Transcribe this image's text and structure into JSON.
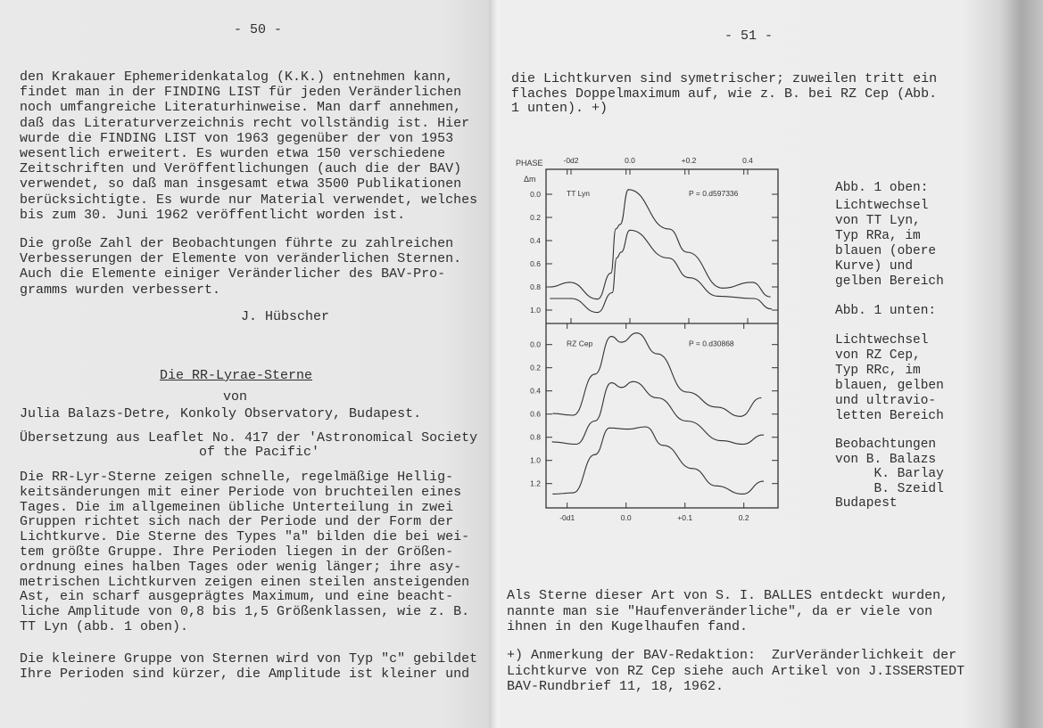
{
  "left_page": {
    "page_number": "- 50 -",
    "paragraph1": [
      "den Krakauer Ephemeridenkatalog (K.K.) entnehmen kann,",
      "findet man in der FINDING LIST für jeden Veränderlichen",
      "noch umfangreiche Literaturhinweise. Man darf annehmen,",
      "daß das Literaturverzeichnis recht vollständig ist. Hier",
      "wurde die FINDING LIST von 1963 gegenüber der von 1953",
      "wesentlich erweitert. Es wurden etwa 150 verschiedene",
      "Zeitschriften und Veröffentlichungen (auch die der BAV)",
      "verwendet, so daß man insgesamt etwa 3500 Publikationen",
      "berücksichtigte. Es wurde nur Material verwendet, welches",
      "bis zum 30. Juni 1962 veröffentlicht worden ist."
    ],
    "paragraph2": [
      "Die große Zahl der Beobachtungen führte zu zahlreichen",
      "Verbesserungen der Elemente von veränderlichen Sternen.",
      "Auch die Elemente einiger Veränderlicher des BAV-Pro-",
      "gramms wurden verbessert."
    ],
    "signature": "J. Hübscher",
    "article_title": "Die RR-Lyrae-Sterne",
    "by": "von",
    "author": "Julia Balazs-Detre, Konkoly Observatory, Budapest.",
    "translation_note": [
      "Übersetzung aus Leaflet No. 417 der 'Astronomical Society",
      "of the Pacific'"
    ],
    "paragraph3": [
      "Die RR-Lyr-Sterne zeigen schnelle, regelmäßige Hellig-",
      "keitsänderungen mit einer Periode von bruchteilen eines",
      "Tages. Die im allgemeinen übliche Unterteilung in zwei",
      "Gruppen richtet sich nach der Periode und der Form der",
      "Lichtkurve. Die Sterne des Types \"a\" bilden die bei wei-",
      "tem größte Gruppe. Ihre Perioden liegen in der Größen-",
      "ordnung eines halben Tages oder wenig länger; ihre asy-",
      "metrischen Lichtkurven zeigen einen steilen ansteigenden",
      "Ast, ein scharf ausgeprägtes Maximum, und eine beacht-",
      "liche Amplitude von 0,8 bis 1,5 Größenklassen, wie z. B.",
      "TT Lyn (abb. 1 oben)."
    ],
    "paragraph4": [
      "Die kleinere Gruppe von Sternen wird von Typ \"c\" gebildet",
      "Ihre Perioden sind kürzer, die Amplitude ist kleiner und"
    ]
  },
  "right_page": {
    "page_number": "- 51 -",
    "paragraph1": [
      "die Lichtkurven sind symetrischer; zuweilen tritt ein",
      "flaches Doppelmaximum auf, wie z. B. bei RZ Cep (Abb.",
      "1 unten). +)"
    ],
    "caption": {
      "top_heading": "Abb. 1 oben:",
      "top_lines": [
        "Lichtwechsel",
        "von TT Lyn,",
        "Typ RRa, im",
        "blauen (obere",
        "Kurve) und",
        "gelben Bereich"
      ],
      "bottom_heading": "Abb. 1 unten:",
      "bottom_lines": [
        "Lichtwechsel",
        "von RZ Cep,",
        "Typ RRc, im",
        "blauen, gelben",
        "und ultravio-",
        "letten Bereich"
      ],
      "credits": [
        "Beobachtungen",
        "von B. Balazs",
        "     K. Barlay",
        "     B. Szeidl",
        "Budapest"
      ]
    },
    "paragraph2": [
      "Als Sterne dieser Art von S. I. BALLES entdeckt wurden,",
      "nannte man sie \"Haufenveränderliche\", da er viele von",
      "ihnen in den Kugelhaufen fand."
    ],
    "footnote": [
      "+) Anmerkung der BAV-Redaktion:  ZurVeränderlichkeit der",
      "Lichtkurve von RZ Cep siehe auch Artikel von J.ISSERSTEDT",
      "BAV-Rundbrief 11, 18, 1962."
    ]
  },
  "chart_data": [
    {
      "type": "line",
      "title": "",
      "star_label": "TT Lyn",
      "period_label": "P = 0.d597336",
      "xlabel": "PHASE",
      "ylabel": "Δm",
      "x_tick_labels": [
        "-0d2",
        "0.0",
        "+0.2",
        "0.4"
      ],
      "x_ticks": [
        -0.2,
        0.0,
        0.2,
        0.4
      ],
      "y_tick_labels": [
        "0.0",
        "0.2",
        "0.4",
        "0.6",
        "0.8",
        "1.0"
      ],
      "y_ticks": [
        0,
        0.2,
        0.4,
        0.6,
        0.8,
        1.0
      ],
      "xlim": [
        -0.285,
        0.5
      ],
      "ylim": [
        1.1,
        -0.1
      ],
      "series": [
        {
          "x": [
            -0.27,
            -0.205,
            -0.11,
            -0.064,
            -0.048,
            -0.033,
            -0.005,
            0.133,
            0.194,
            0.315,
            0.415,
            0.476
          ],
          "y": [
            0.8,
            0.76,
            0.905,
            0.68,
            0.3,
            0.26,
            -0.04,
            0.3,
            0.5,
            0.81,
            0.76,
            0.885
          ]
        },
        {
          "x": [
            -0.27,
            -0.2,
            -0.11,
            -0.06,
            -0.045,
            -0.03,
            0.0,
            0.13,
            0.2,
            0.3,
            0.42,
            0.48
          ],
          "y": [
            0.9,
            0.9,
            1.02,
            0.85,
            0.55,
            0.5,
            0.31,
            0.55,
            0.72,
            0.88,
            0.9,
            0.99
          ]
        }
      ]
    },
    {
      "type": "line",
      "title": "",
      "star_label": "RZ Cep",
      "period_label": "P = 0.d30868",
      "x_tick_labels": [
        "-0d1",
        "0.0",
        "+0.1",
        "0.2"
      ],
      "x_ticks": [
        -0.1,
        0.0,
        0.1,
        0.2
      ],
      "y_tick_labels": [
        "0.0",
        "0.2",
        "0.4",
        "0.6",
        "0.8",
        "1.0",
        "1.2"
      ],
      "y_ticks": [
        0,
        0.2,
        0.4,
        0.6,
        0.8,
        1.0,
        1.2
      ],
      "xlim": [
        -0.135,
        0.258
      ],
      "ylim": [
        1.4,
        -0.2
      ],
      "series": [
        {
          "x": [
            -0.124,
            -0.09,
            -0.053,
            -0.025,
            -0.008,
            0.018,
            0.053,
            0.103,
            0.154,
            0.194,
            0.229
          ],
          "y": [
            0.595,
            0.61,
            0.256,
            -0.07,
            -0.02,
            -0.1,
            0.08,
            0.41,
            0.54,
            0.62,
            0.46
          ]
        },
        {
          "x": [
            -0.125,
            -0.085,
            -0.053,
            -0.025,
            -0.008,
            0.012,
            0.053,
            0.103,
            0.163,
            0.198,
            0.233
          ],
          "y": [
            0.84,
            0.86,
            0.66,
            0.33,
            0.37,
            0.32,
            0.46,
            0.66,
            0.83,
            0.86,
            0.78
          ]
        },
        {
          "x": [
            -0.124,
            -0.09,
            -0.053,
            -0.028,
            0.003,
            0.033,
            0.063,
            0.113,
            0.153,
            0.198,
            0.233
          ],
          "y": [
            1.29,
            1.28,
            0.95,
            0.72,
            0.73,
            0.71,
            0.87,
            1.07,
            1.22,
            1.29,
            1.18
          ]
        }
      ]
    }
  ]
}
